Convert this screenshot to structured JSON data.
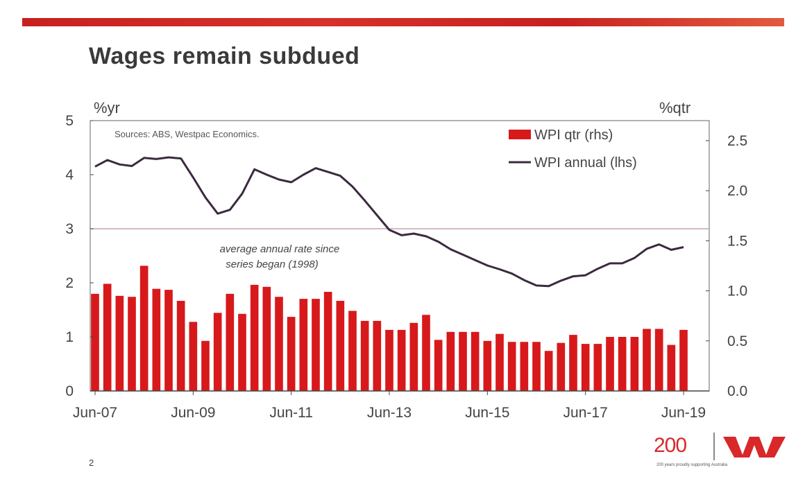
{
  "slide": {
    "title": "Wages remain subdued",
    "page_number": "2",
    "logo_text": "200",
    "tagline": "200 years proudly supporting Australia"
  },
  "colors": {
    "bar": "#d7191c",
    "line": "#3b2a3f",
    "average_line": "#c9a2b4",
    "axis": "#555555"
  },
  "chart_data": {
    "type": "bar+line",
    "source_note": "Sources: ABS, Westpac Economics.",
    "left_axis_unit": "%yr",
    "right_axis_unit": "%qtr",
    "left_ylim": [
      0,
      5
    ],
    "left_ticks": [
      "0",
      "1",
      "2",
      "3",
      "4",
      "5"
    ],
    "right_ylim": [
      0.0,
      2.7
    ],
    "right_ticks": [
      "0.0",
      "0.5",
      "1.0",
      "1.5",
      "2.0",
      "2.5"
    ],
    "x_tick_labels": [
      "Jun-07",
      "Jun-09",
      "Jun-11",
      "Jun-13",
      "Jun-15",
      "Jun-17",
      "Jun-19"
    ],
    "legend": {
      "placement": "top-right",
      "bar_label": "WPI qtr (rhs)",
      "line_label": "WPI annual (lhs)"
    },
    "annotation": "average annual rate since series began (1998)",
    "average_annual_rate": 3.0,
    "series": [
      {
        "name": "WPI qtr (rhs)",
        "axis": "right",
        "kind": "bar",
        "values": [
          0.97,
          1.07,
          0.95,
          0.94,
          1.25,
          1.02,
          1.01,
          0.9,
          0.69,
          0.5,
          0.78,
          0.97,
          0.77,
          1.06,
          1.04,
          0.94,
          0.74,
          0.92,
          0.92,
          0.99,
          0.9,
          0.8,
          0.7,
          0.7,
          0.61,
          0.61,
          0.68,
          0.76,
          0.51,
          0.59,
          0.59,
          0.59,
          0.5,
          0.57,
          0.49,
          0.49,
          0.49,
          0.4,
          0.48,
          0.56,
          0.47,
          0.47,
          0.54,
          0.54,
          0.54,
          0.62,
          0.62,
          0.46,
          0.61
        ]
      },
      {
        "name": "WPI annual (lhs)",
        "axis": "left",
        "kind": "line",
        "values": [
          4.15,
          4.27,
          4.19,
          4.16,
          4.31,
          4.29,
          4.32,
          4.3,
          3.95,
          3.58,
          3.28,
          3.35,
          3.65,
          4.1,
          4.0,
          3.91,
          3.86,
          4.0,
          4.12,
          4.05,
          3.98,
          3.78,
          3.52,
          3.25,
          2.98,
          2.88,
          2.91,
          2.86,
          2.76,
          2.62,
          2.52,
          2.42,
          2.32,
          2.25,
          2.17,
          2.05,
          1.95,
          1.94,
          2.04,
          2.12,
          2.14,
          2.26,
          2.36,
          2.36,
          2.46,
          2.63,
          2.71,
          2.61,
          2.66
        ]
      }
    ]
  }
}
